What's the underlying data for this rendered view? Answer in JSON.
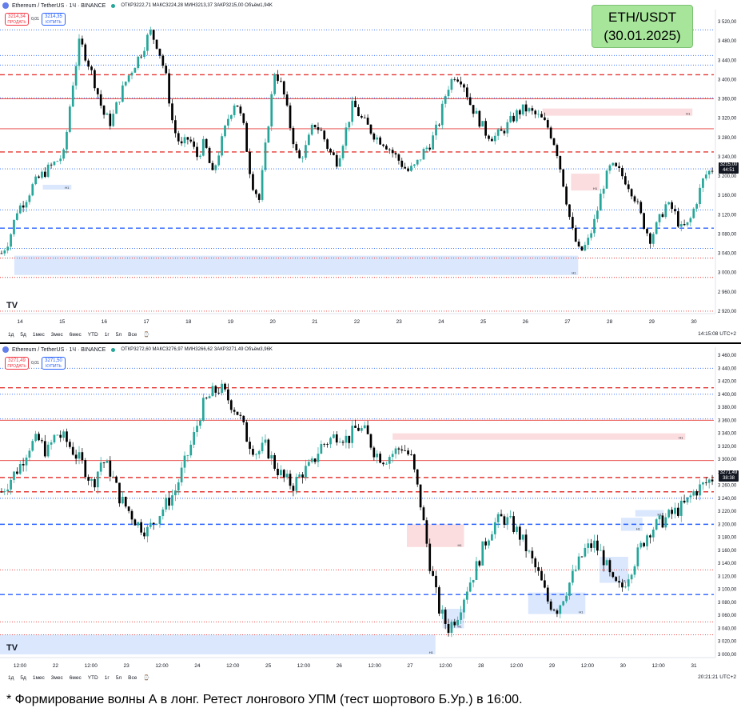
{
  "badge": {
    "pair": "ETH/USDT",
    "date": "(30.01.2025)"
  },
  "caption": "* Формирование волны А в лонг. Ретест лонгового УПМ (тест шортового Б.Ур.) в 16:00.",
  "colors": {
    "up": "#26a69a",
    "down": "#000000",
    "red": "#e53935",
    "blue": "#2962ff",
    "zone_blue": "#d6e4fc",
    "zone_red": "#fbd9dc"
  },
  "panels": [
    {
      "header": {
        "symbol": "Ethereum / TetherUS · 1Ч · BINANCE",
        "ohlc": "ОТКР3222,71  МАКС3224,28  МИН3213,37  ЗАКР3215,00  Объём1,94K"
      },
      "sell": {
        "price": "3214,34",
        "label": "ПРОДАТЬ"
      },
      "spread": "0,01",
      "buy": {
        "price": "3214,35",
        "label": "КУПИТЬ"
      },
      "last_price": "3215,00",
      "countdown": "44:51",
      "time_readout": "14:15:08 UTC+2"
    },
    {
      "header": {
        "symbol": "Ethereum / TetherUS · 1Ч · BINANCE",
        "ohlc": "ОТКР3272,60  МАКС3276,97  МИН3266,62  ЗАКР3271,49  Объём3,96K"
      },
      "sell": {
        "price": "3271,49",
        "label": "ПРОДАТЬ"
      },
      "spread": "0,01",
      "buy": {
        "price": "3271,50",
        "label": "КУПИТЬ"
      },
      "last_price": "3271,49",
      "countdown": "38:38",
      "time_readout": "20:21:21 UTC+2"
    }
  ],
  "range_buttons": [
    "1д",
    "5д",
    "1мес",
    "3мес",
    "6мес",
    "YTD",
    "1г",
    "5л",
    "Все"
  ],
  "chart_data": [
    {
      "type": "candlestick",
      "title": "",
      "y_ticks": [
        3520,
        3480,
        3440,
        3400,
        3360,
        3320,
        3280,
        3240,
        3200,
        3160,
        3120,
        3080,
        3040,
        3000,
        2960,
        2920
      ],
      "y_tick_labels": [
        "3 520,00",
        "3 480,00",
        "3 440,00",
        "3 400,00",
        "3 360,00",
        "3 320,00",
        "3 280,00",
        "3 240,00",
        "3 200,00",
        "3 160,00",
        "3 120,00",
        "3 080,00",
        "3 040,00",
        "3 000,00",
        "2 960,00",
        "2 920,00"
      ],
      "ylim": [
        2915,
        3535
      ],
      "x_ticks": [
        "14",
        "15",
        "16",
        "17",
        "18",
        "19",
        "20",
        "21",
        "22",
        "23",
        "24",
        "25",
        "26",
        "27",
        "28",
        "29",
        "30"
      ],
      "close_path": [
        3040,
        3070,
        3130,
        3150,
        3180,
        3200,
        3215,
        3230,
        3245,
        3380,
        3480,
        3440,
        3390,
        3330,
        3310,
        3360,
        3400,
        3430,
        3460,
        3500,
        3470,
        3410,
        3300,
        3260,
        3280,
        3240,
        3270,
        3200,
        3260,
        3320,
        3360,
        3300,
        3190,
        3150,
        3290,
        3420,
        3380,
        3300,
        3230,
        3260,
        3310,
        3290,
        3250,
        3230,
        3290,
        3350,
        3320,
        3300,
        3280,
        3270,
        3250,
        3230,
        3210,
        3220,
        3250,
        3270,
        3310,
        3380,
        3410,
        3400,
        3350,
        3320,
        3290,
        3280,
        3290,
        3310,
        3330,
        3340,
        3330,
        3320,
        3300,
        3260,
        3180,
        3090,
        3040,
        3060,
        3110,
        3180,
        3220,
        3210,
        3190,
        3160,
        3110,
        3070,
        3100,
        3140,
        3130,
        3090,
        3100,
        3150,
        3200,
        3215
      ],
      "levels": [
        {
          "price": 3410,
          "color": "red",
          "style": "dash"
        },
        {
          "price": 3250,
          "color": "red",
          "style": "dash"
        },
        {
          "price": 3092,
          "color": "blue",
          "style": "dash"
        },
        {
          "price": 3298,
          "color": "red",
          "style": "solid"
        },
        {
          "price": 3360,
          "color": "red",
          "style": "solid"
        },
        {
          "price": 3503,
          "color": "blue",
          "style": "dot"
        },
        {
          "price": 3450,
          "color": "blue",
          "style": "dot"
        },
        {
          "price": 3430,
          "color": "blue",
          "style": "dot"
        },
        {
          "price": 3362,
          "color": "blue",
          "style": "dot"
        },
        {
          "price": 3130,
          "color": "blue",
          "style": "dot"
        },
        {
          "price": 3050,
          "color": "blue",
          "style": "dot"
        },
        {
          "price": 3215,
          "color": "blue",
          "style": "dot"
        },
        {
          "price": 3030,
          "color": "red",
          "style": "dot"
        },
        {
          "price": 2990,
          "color": "red",
          "style": "dot"
        },
        {
          "price": 2920,
          "color": "red",
          "style": "dot"
        }
      ],
      "zones": [
        {
          "from_x": 0.02,
          "to_x": 0.81,
          "low": 2995,
          "high": 3035,
          "color": "zone_blue",
          "label": "H1"
        },
        {
          "from_x": 0.8,
          "to_x": 0.84,
          "low": 3170,
          "high": 3205,
          "color": "zone_red",
          "label": "H1"
        },
        {
          "from_x": 0.76,
          "to_x": 0.97,
          "low": 3325,
          "high": 3340,
          "color": "zone_red",
          "label": "H1"
        },
        {
          "from_x": 0.06,
          "to_x": 0.1,
          "low": 3172,
          "high": 3182,
          "color": "zone_blue",
          "label": "H1"
        }
      ]
    },
    {
      "type": "candlestick",
      "title": "",
      "y_ticks": [
        3460,
        3440,
        3420,
        3400,
        3380,
        3360,
        3340,
        3320,
        3300,
        3280,
        3260,
        3240,
        3220,
        3200,
        3180,
        3160,
        3140,
        3120,
        3100,
        3080,
        3060,
        3040,
        3020,
        3000
      ],
      "y_tick_labels": [
        "3 460,00",
        "3 440,00",
        "3 420,00",
        "3 400,00",
        "3 380,00",
        "3 360,00",
        "3 340,00",
        "3 320,00",
        "3 300,00",
        "3 280,00",
        "3 260,00",
        "3 240,00",
        "3 220,00",
        "3 200,00",
        "3 180,00",
        "3 160,00",
        "3 140,00",
        "3 120,00",
        "3 100,00",
        "3 080,00",
        "3 060,00",
        "3 040,00",
        "3 020,00",
        "3 000,00"
      ],
      "ylim": [
        2995,
        3465
      ],
      "x_ticks": [
        "12:00",
        "22",
        "12:00",
        "23",
        "12:00",
        "24",
        "12:00",
        "25",
        "12:00",
        "26",
        "12:00",
        "27",
        "12:00",
        "28",
        "12:00",
        "29",
        "12:00",
        "30",
        "12:00",
        "31"
      ],
      "close_path": [
        3250,
        3270,
        3290,
        3320,
        3330,
        3310,
        3340,
        3330,
        3310,
        3290,
        3260,
        3300,
        3280,
        3240,
        3220,
        3200,
        3190,
        3210,
        3230,
        3250,
        3290,
        3330,
        3380,
        3400,
        3410,
        3390,
        3370,
        3330,
        3310,
        3320,
        3290,
        3270,
        3260,
        3280,
        3290,
        3320,
        3330,
        3340,
        3330,
        3350,
        3340,
        3310,
        3300,
        3310,
        3320,
        3300,
        3230,
        3140,
        3070,
        3040,
        3060,
        3100,
        3130,
        3170,
        3200,
        3210,
        3200,
        3180,
        3150,
        3120,
        3080,
        3070,
        3100,
        3130,
        3160,
        3170,
        3150,
        3110,
        3100,
        3130,
        3160,
        3190,
        3200,
        3210,
        3220,
        3230,
        3250,
        3260,
        3271
      ],
      "levels": [
        {
          "price": 3410,
          "color": "red",
          "style": "dash"
        },
        {
          "price": 3250,
          "color": "red",
          "style": "dash"
        },
        {
          "price": 3092,
          "color": "blue",
          "style": "dash"
        },
        {
          "price": 3200,
          "color": "blue",
          "style": "dash"
        },
        {
          "price": 3272,
          "color": "red",
          "style": "dash"
        },
        {
          "price": 3360,
          "color": "red",
          "style": "solid"
        },
        {
          "price": 3298,
          "color": "red",
          "style": "solid"
        },
        {
          "price": 3440,
          "color": "blue",
          "style": "dot"
        },
        {
          "price": 3400,
          "color": "blue",
          "style": "dot"
        },
        {
          "price": 3362,
          "color": "blue",
          "style": "dot"
        },
        {
          "price": 3240,
          "color": "blue",
          "style": "dot"
        },
        {
          "price": 3130,
          "color": "red",
          "style": "dot"
        },
        {
          "price": 3050,
          "color": "red",
          "style": "dot"
        },
        {
          "price": 3030,
          "color": "red",
          "style": "dot"
        }
      ],
      "zones": [
        {
          "from_x": 0.0,
          "to_x": 0.61,
          "low": 3000,
          "high": 3030,
          "color": "zone_blue",
          "label": "H1"
        },
        {
          "from_x": 0.57,
          "to_x": 0.65,
          "low": 3165,
          "high": 3200,
          "color": "zone_red",
          "label": "H1"
        },
        {
          "from_x": 0.55,
          "to_x": 0.96,
          "low": 3330,
          "high": 3340,
          "color": "zone_red",
          "label": "H1"
        },
        {
          "from_x": 0.74,
          "to_x": 0.82,
          "low": 3062,
          "high": 3095,
          "color": "zone_blue",
          "label": "H1"
        },
        {
          "from_x": 0.62,
          "to_x": 0.65,
          "low": 3040,
          "high": 3070,
          "color": "zone_blue",
          "label": "H1"
        },
        {
          "from_x": 0.84,
          "to_x": 0.88,
          "low": 3110,
          "high": 3150,
          "color": "zone_blue",
          "label": "H1"
        },
        {
          "from_x": 0.87,
          "to_x": 0.9,
          "low": 3190,
          "high": 3210,
          "color": "zone_blue",
          "label": "H1"
        },
        {
          "from_x": 0.89,
          "to_x": 0.93,
          "low": 3212,
          "high": 3222,
          "color": "zone_blue",
          "label": "H1"
        }
      ]
    }
  ]
}
